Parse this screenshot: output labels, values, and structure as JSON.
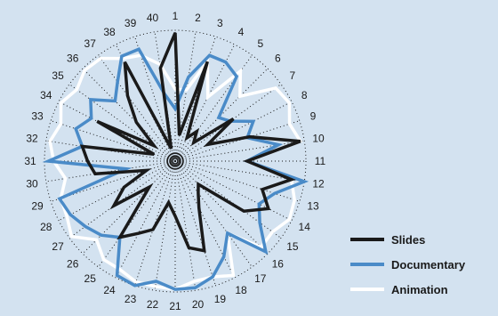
{
  "chart_data": {
    "type": "radar",
    "categories": [
      "1",
      "2",
      "3",
      "4",
      "5",
      "6",
      "7",
      "8",
      "9",
      "10",
      "11",
      "12",
      "13",
      "14",
      "15",
      "16",
      "17",
      "18",
      "19",
      "20",
      "21",
      "22",
      "23",
      "24",
      "25",
      "26",
      "27",
      "28",
      "29",
      "30",
      "31",
      "32",
      "33",
      "34",
      "35",
      "36",
      "37",
      "38",
      "39",
      "40"
    ],
    "series": [
      {
        "name": "Slides",
        "color": "#1a1a1a",
        "values": [
          0.98,
          0.2,
          0.8,
          0.2,
          0.28,
          0.2,
          0.55,
          0.28,
          0.6,
          0.97,
          0.55,
          0.9,
          0.7,
          0.8,
          0.65,
          0.25,
          0.3,
          0.4,
          0.72,
          0.67,
          0.42,
          0.32,
          0.55,
          0.62,
          0.72,
          0.28,
          0.58,
          0.44,
          0.23,
          0.62,
          0.67,
          0.72,
          0.17,
          0.67,
          0.2,
          0.42,
          0.62,
          0.85,
          0.1,
          0.72
        ]
      },
      {
        "name": "Documentary",
        "color": "#4a8bc8",
        "values": [
          0.4,
          0.65,
          0.85,
          0.85,
          0.8,
          0.47,
          0.52,
          0.67,
          0.58,
          0.8,
          0.55,
          1.0,
          0.8,
          0.72,
          0.8,
          0.98,
          0.68,
          0.82,
          0.93,
          0.98,
          0.98,
          0.93,
          1.0,
          0.98,
          0.72,
          0.8,
          0.85,
          0.9,
          0.93,
          0.38,
          0.97,
          0.72,
          0.8,
          0.72,
          0.8,
          0.65,
          0.75,
          0.9,
          0.9,
          0.52
        ]
      },
      {
        "name": "Animation",
        "color": "#ffffff",
        "values": [
          0.55,
          0.55,
          0.8,
          0.55,
          0.85,
          0.7,
          0.95,
          0.98,
          0.92,
          0.97,
          0.55,
          0.9,
          0.96,
          0.98,
          0.92,
          0.93,
          0.68,
          0.98,
          0.93,
          0.93,
          0.98,
          0.97,
          0.97,
          0.93,
          0.93,
          0.85,
          0.98,
          0.93,
          0.92,
          0.85,
          0.93,
          0.97,
          0.92,
          0.98,
          0.93,
          0.98,
          0.97,
          0.88,
          0.85,
          0.75
        ]
      }
    ],
    "rmax": 1.0,
    "grid": "dotted",
    "legend_position": "bottom-right"
  }
}
